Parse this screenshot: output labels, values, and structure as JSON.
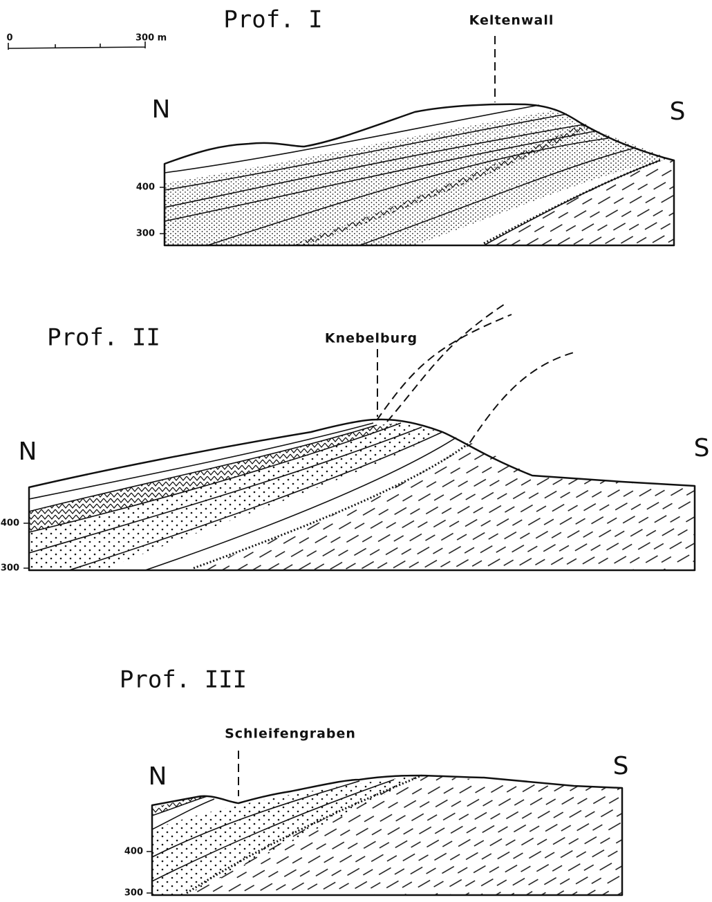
{
  "scale_bar": {
    "start": "0",
    "end": "300 m"
  },
  "profiles": [
    {
      "title": "Prof. I",
      "landmark": "Keltenwall",
      "north": "N",
      "south": "S",
      "elevation_labels": [
        "400",
        "300"
      ]
    },
    {
      "title": "Prof. II",
      "landmark": "Knebelburg",
      "north": "N",
      "south": "S",
      "elevation_labels": [
        "400",
        "300"
      ]
    },
    {
      "title": "Prof. III",
      "landmark": "Schleifengraben",
      "north": "N",
      "south": "S",
      "elevation_labels": [
        "400",
        "300"
      ]
    }
  ]
}
